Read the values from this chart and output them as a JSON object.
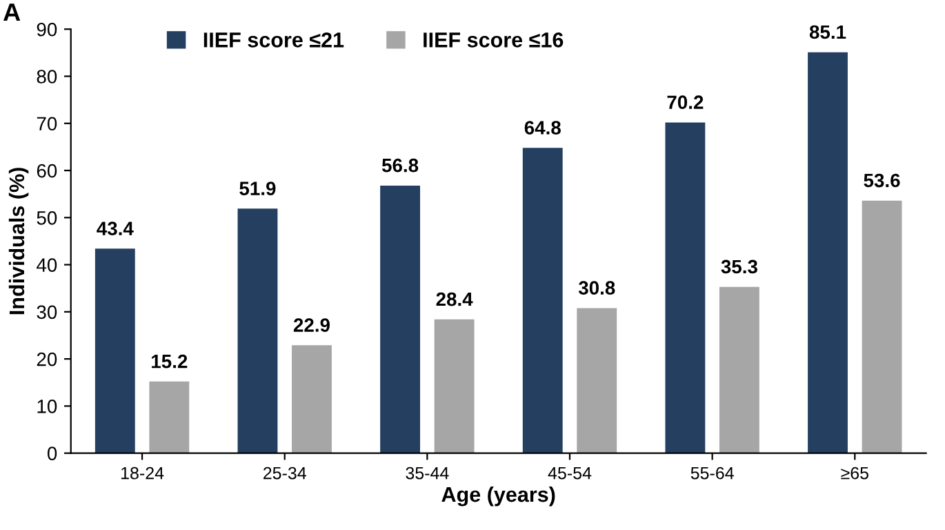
{
  "chart_data": {
    "type": "bar",
    "xlabel": "Age (years)",
    "ylabel": "Individuals (%)",
    "annotations": [
      "A"
    ],
    "categories": [
      "18-24",
      "25-34",
      "35-44",
      "45-54",
      "55-64",
      "≥65"
    ],
    "series": [
      {
        "name": "IIEF score ≤21",
        "color": "#243f60",
        "values": [
          43.4,
          51.9,
          56.8,
          64.8,
          70.2,
          85.1
        ]
      },
      {
        "name": "IIEF score ≤16",
        "color": "#a6a6a6",
        "values": [
          15.2,
          22.9,
          28.4,
          30.8,
          35.3,
          53.6
        ]
      }
    ],
    "ylim": [
      0,
      90
    ],
    "yticks": [
      0,
      10,
      20,
      30,
      40,
      50,
      60,
      70,
      80,
      90
    ],
    "data_labels": true,
    "grid": false,
    "legend": "top left"
  }
}
